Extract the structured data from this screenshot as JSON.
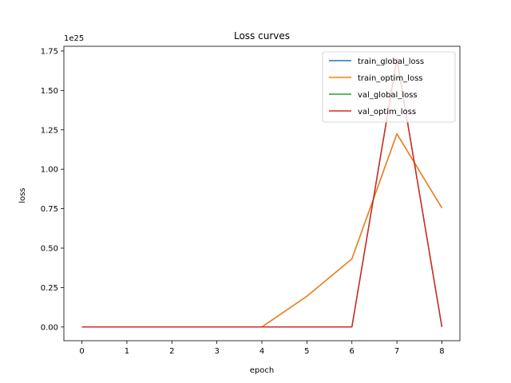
{
  "chart_data": {
    "type": "line",
    "title": "Loss curves",
    "xlabel": "epoch",
    "ylabel": "loss",
    "y_scale_note": "1e25",
    "x": [
      0,
      1,
      2,
      3,
      4,
      5,
      6,
      7,
      8
    ],
    "xlim": [
      -0.4,
      8.4
    ],
    "ylim": [
      -0.087,
      1.78
    ],
    "xticks": [
      0,
      1,
      2,
      3,
      4,
      5,
      6,
      7,
      8
    ],
    "yticks": [
      0.0,
      0.25,
      0.5,
      0.75,
      1.0,
      1.25,
      1.5,
      1.75
    ],
    "ytick_labels": [
      "0.00",
      "0.25",
      "0.50",
      "0.75",
      "1.00",
      "1.25",
      "1.50",
      "1.75"
    ],
    "legend_position": "upper right",
    "grid": false,
    "series": [
      {
        "name": "train_global_loss",
        "color": "#1f77b4",
        "values": [
          0,
          0,
          0,
          0,
          0,
          0.195,
          0.432,
          1.225,
          0.755
        ]
      },
      {
        "name": "train_optim_loss",
        "color": "#ff7f0e",
        "values": [
          0,
          0,
          0,
          0,
          0,
          0.195,
          0.432,
          1.225,
          0.755
        ]
      },
      {
        "name": "val_global_loss",
        "color": "#2ca02c",
        "values": [
          0,
          0,
          0,
          0,
          0,
          0,
          0,
          1.7,
          0
        ]
      },
      {
        "name": "val_optim_loss",
        "color": "#d62728",
        "values": [
          0,
          0,
          0,
          0,
          0,
          0,
          0,
          1.7,
          0
        ]
      }
    ]
  }
}
